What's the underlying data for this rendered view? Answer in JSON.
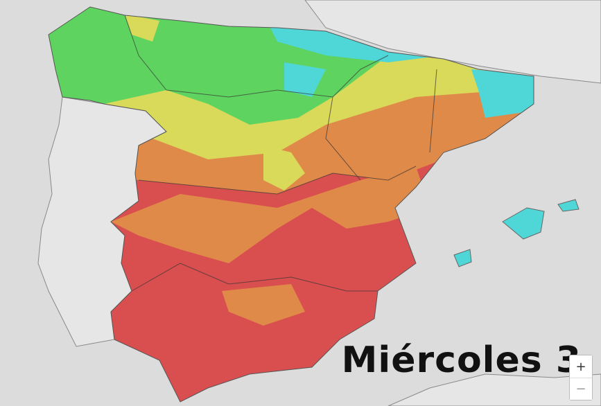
{
  "map": {
    "day_label": "Miércoles 3",
    "zoom_in": "+",
    "zoom_out": "−"
  }
}
